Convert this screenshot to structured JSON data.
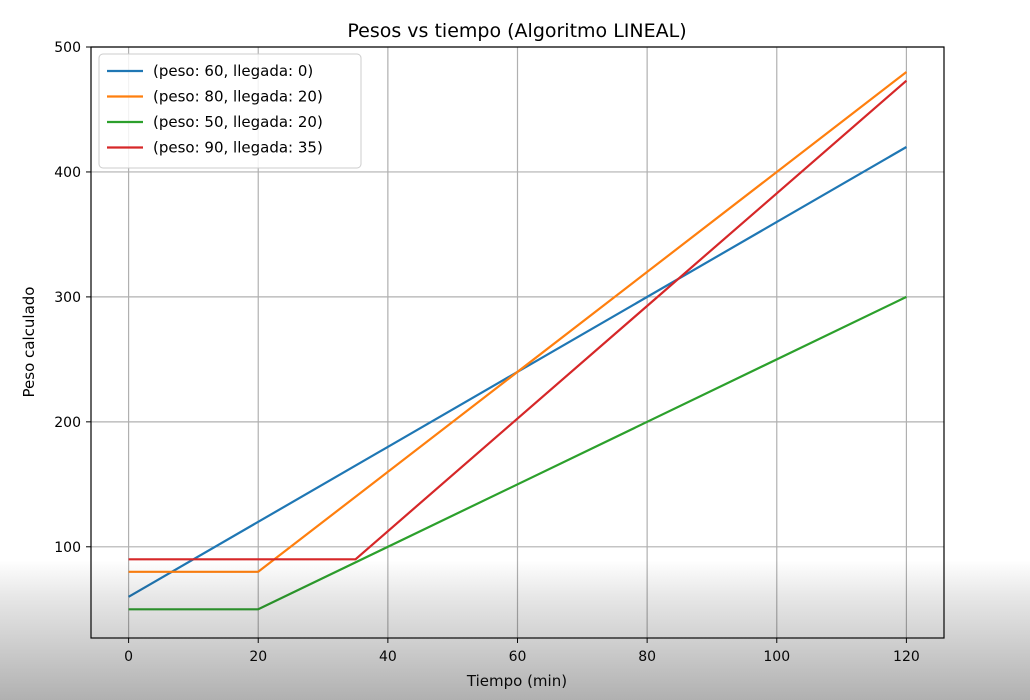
{
  "chart_data": {
    "type": "line",
    "title": "Pesos vs tiempo (Algoritmo LINEAL)",
    "xlabel": "Tiempo (min)",
    "ylabel": "Peso calculado",
    "xlim": [
      -5.8,
      125.8
    ],
    "ylim": [
      27,
      500
    ],
    "grid": true,
    "legend_position": "top-left",
    "x_ticks": [
      {
        "value": 0,
        "label": "0"
      },
      {
        "value": 20,
        "label": "20"
      },
      {
        "value": 40,
        "label": "40"
      },
      {
        "value": 60,
        "label": "60"
      },
      {
        "value": 80,
        "label": "80"
      },
      {
        "value": 100,
        "label": "100"
      },
      {
        "value": 120,
        "label": "120"
      }
    ],
    "y_ticks": [
      {
        "value": 100,
        "label": "100"
      },
      {
        "value": 200,
        "label": "200"
      },
      {
        "value": 300,
        "label": "300"
      },
      {
        "value": 400,
        "label": "400"
      },
      {
        "value": 500,
        "label": "500"
      }
    ],
    "series": [
      {
        "name": "(peso: 60, llegada: 0)",
        "color": "#1f77b4",
        "points": [
          [
            0,
            60
          ],
          [
            120,
            420
          ]
        ]
      },
      {
        "name": "(peso: 80, llegada: 20)",
        "color": "#ff7f0e",
        "points": [
          [
            0,
            80
          ],
          [
            20,
            80
          ],
          [
            120,
            480
          ]
        ]
      },
      {
        "name": "(peso: 50, llegada: 20)",
        "color": "#2ca02c",
        "points": [
          [
            0,
            50
          ],
          [
            20,
            50
          ],
          [
            120,
            300
          ]
        ]
      },
      {
        "name": "(peso: 90, llegada: 35)",
        "color": "#d62728",
        "points": [
          [
            0,
            90
          ],
          [
            35,
            90
          ],
          [
            120,
            473
          ]
        ]
      }
    ]
  }
}
